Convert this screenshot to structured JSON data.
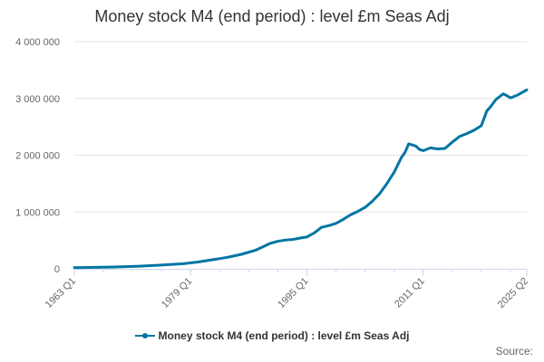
{
  "chart_data": {
    "type": "line",
    "title": "Money stock M4 (end period) : level £m Seas Adj",
    "xlabel": "",
    "ylabel": "",
    "ylim": [
      0,
      4000000
    ],
    "yticks": [
      0,
      1000000,
      2000000,
      3000000,
      4000000
    ],
    "ytick_labels": [
      "0",
      "1 000 000",
      "2 000 000",
      "3 000 000",
      "4 000 000"
    ],
    "xlim": [
      1963.0,
      2025.25
    ],
    "xticks": [
      1963.0,
      1979.0,
      1995.0,
      2011.0,
      2025.25
    ],
    "xtick_labels": [
      "1963 Q1",
      "1979 Q1",
      "1995 Q1",
      "2011 Q1",
      "2025 Q2"
    ],
    "grid": true,
    "legend_position": "bottom",
    "series": [
      {
        "name": "Money stock M4 (end period) : level £m Seas Adj",
        "color": "#0075a3",
        "x": [
          1963,
          1966,
          1969,
          1972,
          1975,
          1978,
          1980,
          1982,
          1984,
          1986,
          1988,
          1989,
          1990,
          1991,
          1992,
          1993,
          1994,
          1995,
          1996,
          1997,
          1998,
          1999,
          2000,
          2001,
          2002,
          2003,
          2004,
          2005,
          2006,
          2007,
          2008,
          2008.5,
          2009,
          2009.5,
          2010,
          2010.5,
          2011,
          2012,
          2013,
          2014,
          2015,
          2016,
          2017,
          2018,
          2019,
          2019.75,
          2020.25,
          2021,
          2022,
          2022.5,
          2023,
          2024,
          2025.25
        ],
        "values": [
          20000,
          26000,
          33000,
          45000,
          65000,
          90000,
          120000,
          160000,
          200000,
          255000,
          330000,
          390000,
          450000,
          485000,
          505000,
          515000,
          540000,
          560000,
          630000,
          730000,
          760000,
          800000,
          870000,
          950000,
          1010000,
          1080000,
          1190000,
          1320000,
          1500000,
          1700000,
          1960000,
          2050000,
          2200000,
          2180000,
          2160000,
          2100000,
          2080000,
          2130000,
          2110000,
          2120000,
          2230000,
          2330000,
          2380000,
          2440000,
          2520000,
          2780000,
          2850000,
          2980000,
          3080000,
          3050000,
          3010000,
          3060000,
          3150000
        ]
      }
    ]
  },
  "legend": {
    "label": "Money stock M4 (end period) : level £m Seas Adj"
  },
  "source": {
    "label": "Source:"
  }
}
